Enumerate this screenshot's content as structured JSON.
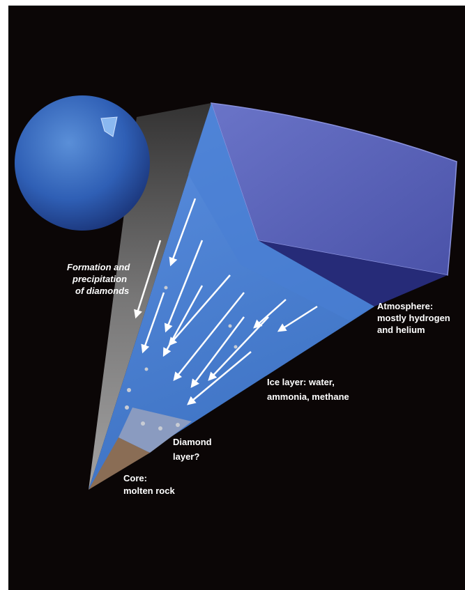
{
  "labels": [
    {
      "lines": [
        "Formation and",
        "precipitation",
        "of diamonds"
      ]
    },
    {
      "lines": [
        "Atmosphere:",
        "mostly hydrogen",
        "and helium"
      ]
    },
    {
      "lines": [
        "Ice layer: water,",
        "ammonia, methane"
      ]
    },
    {
      "lines": [
        "Diamond",
        "layer?"
      ]
    },
    {
      "lines": [
        "Core:",
        "molten rock"
      ]
    }
  ]
}
